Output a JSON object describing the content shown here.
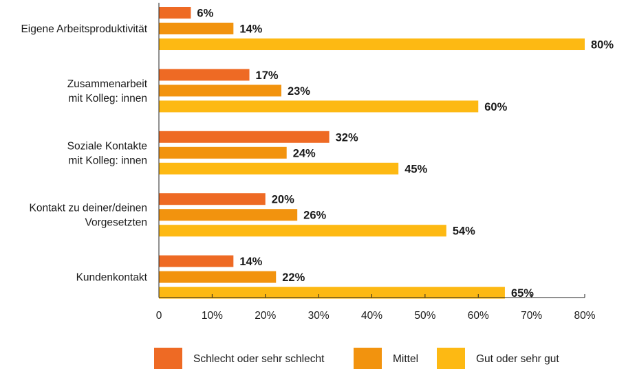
{
  "chart_data": {
    "type": "bar",
    "orientation": "horizontal",
    "categories": [
      [
        "Eigene Arbeitsproduktivität"
      ],
      [
        "Zusammenarbeit",
        "mit Kolleg: innen"
      ],
      [
        "Soziale Kontakte",
        "mit Kolleg: innen"
      ],
      [
        "Kontakt zu deiner/deinen",
        "Vorgesetzten"
      ],
      [
        "Kundenkontakt"
      ]
    ],
    "series": [
      {
        "name": "Schlecht oder sehr schlecht",
        "color": "#EE6A24",
        "values": [
          6,
          17,
          32,
          20,
          14
        ],
        "labels": [
          "6%",
          "17%",
          "32%",
          "20%",
          "14%"
        ]
      },
      {
        "name": "Mittel",
        "color": "#F2930E",
        "values": [
          14,
          23,
          24,
          26,
          22
        ],
        "labels": [
          "14%",
          "23%",
          "24%",
          "26%",
          "22%"
        ]
      },
      {
        "name": "Gut oder sehr gut",
        "color": "#FDB913",
        "values": [
          80,
          60,
          45,
          54,
          65
        ],
        "labels": [
          "80%",
          "60%",
          "45%",
          "54%",
          "65%"
        ]
      }
    ],
    "xlim": [
      0,
      80
    ],
    "xticks": [
      0,
      10,
      20,
      30,
      40,
      50,
      60,
      70,
      80
    ],
    "xtick_labels": [
      "0",
      "10%",
      "20%",
      "30%",
      "40%",
      "50%",
      "60%",
      "70%",
      "80%"
    ],
    "grid": false,
    "legend_position": "bottom",
    "title": "",
    "xlabel": "",
    "ylabel": ""
  }
}
